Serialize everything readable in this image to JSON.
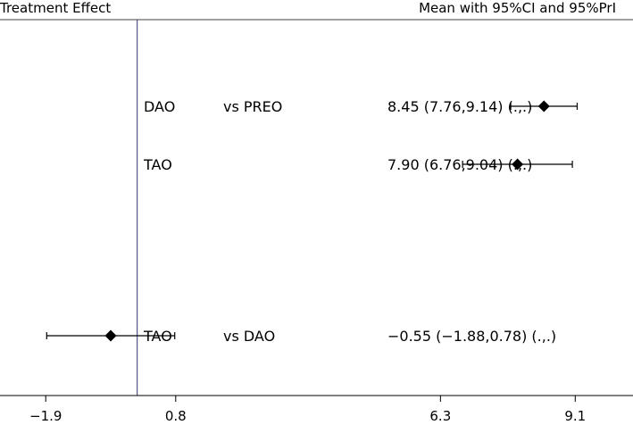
{
  "chart_data": {
    "type": "forest",
    "header_left": "Treatment Effect",
    "header_right": "Mean with 95%CI and 95%PrI",
    "reference_line": 0,
    "xlim": [
      -2.85,
      10.3
    ],
    "x_ticks": [
      {
        "value": -1.9,
        "label": "−1.9"
      },
      {
        "value": 0.8,
        "label": "0.8"
      },
      {
        "value": 6.3,
        "label": "6.3"
      },
      {
        "value": 9.1,
        "label": "9.1"
      }
    ],
    "rows": [
      {
        "treatment": "DAO",
        "comparator": "vs PREO",
        "mean": 8.45,
        "ci_low": 7.76,
        "ci_high": 9.14,
        "summary": "8.45 (7.76,9.14)  (.,.)"
      },
      {
        "treatment": "TAO",
        "comparator": "",
        "mean": 7.9,
        "ci_low": 6.76,
        "ci_high": 9.04,
        "summary": "7.90 (6.76,9.04)  (.,.)"
      },
      {
        "treatment": "TAO",
        "comparator": "vs DAO",
        "mean": -0.55,
        "ci_low": -1.88,
        "ci_high": 0.78,
        "summary": "−0.55 (−1.88,0.78)  (.,.)"
      }
    ],
    "colors": {
      "reference_line": "#3b4a7a",
      "marker": "#000000",
      "axis": "#000000"
    }
  }
}
